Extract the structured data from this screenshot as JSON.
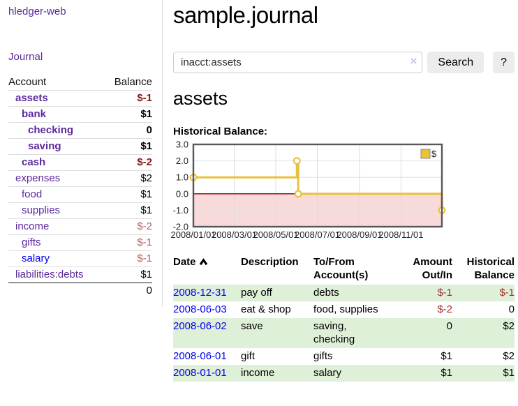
{
  "app": {
    "brand": "hledger-web",
    "nav_journal": "Journal"
  },
  "colors": {
    "link_purple": "#5b2a9b",
    "link_blue": "#0000ee",
    "negative_strong": "#8b1414",
    "negative_muted": "#b25f5f",
    "negative_table": "#9e2f2f",
    "row_stripe_green": "#dff0d8",
    "series_gold": "#e7c23f"
  },
  "sidebar": {
    "header": {
      "account": "Account",
      "balance": "Balance"
    },
    "rows": [
      {
        "label": "assets",
        "amount": "$-1",
        "depth": 1,
        "bold": true,
        "amount_class": "negs",
        "blue": false
      },
      {
        "label": "bank",
        "amount": "$1",
        "depth": 2,
        "bold": true,
        "amount_class": "",
        "blue": false
      },
      {
        "label": "checking",
        "amount": "0",
        "depth": 3,
        "bold": true,
        "amount_class": "",
        "blue": false
      },
      {
        "label": "saving",
        "amount": "$1",
        "depth": 3,
        "bold": true,
        "amount_class": "",
        "blue": false
      },
      {
        "label": "cash",
        "amount": "$-2",
        "depth": 2,
        "bold": true,
        "amount_class": "negs",
        "blue": false
      },
      {
        "label": "expenses",
        "amount": "$2",
        "depth": 1,
        "bold": false,
        "amount_class": "",
        "blue": false
      },
      {
        "label": "food",
        "amount": "$1",
        "depth": 2,
        "bold": false,
        "amount_class": "",
        "blue": false
      },
      {
        "label": "supplies",
        "amount": "$1",
        "depth": 2,
        "bold": false,
        "amount_class": "",
        "blue": false
      },
      {
        "label": "income",
        "amount": "$-2",
        "depth": 1,
        "bold": false,
        "amount_class": "negm",
        "blue": false
      },
      {
        "label": "gifts",
        "amount": "$-1",
        "depth": 2,
        "bold": false,
        "amount_class": "negm",
        "blue": false
      },
      {
        "label": "salary",
        "amount": "$-1",
        "depth": 2,
        "bold": false,
        "amount_class": "negm",
        "blue": true
      },
      {
        "label": "liabilities:debts",
        "amount": "$1",
        "depth": 1,
        "bold": false,
        "amount_class": "",
        "blue": false
      }
    ],
    "total": "0"
  },
  "main": {
    "title": "sample.journal",
    "search": {
      "value": "inacct:assets",
      "clear_icon": "×",
      "button": "Search",
      "help_button": "?"
    },
    "account_title": "assets",
    "chart_label": "Historical Balance:"
  },
  "register": {
    "headers": {
      "date": "Date",
      "description": "Description",
      "account": "To/From\nAccount(s)",
      "amount": "Amount\nOut/In",
      "balance": "Historical\nBalance"
    },
    "rows": [
      {
        "date": "2008-12-31",
        "description": "pay off",
        "accounts": "debts",
        "amount": "$-1",
        "amount_neg": true,
        "balance": "$-1",
        "balance_neg": true
      },
      {
        "date": "2008-06-03",
        "description": "eat & shop",
        "accounts": "food, supplies",
        "amount": "$-2",
        "amount_neg": true,
        "balance": "0",
        "balance_neg": false
      },
      {
        "date": "2008-06-02",
        "description": "save",
        "accounts": "saving,\nchecking",
        "amount": "0",
        "amount_neg": false,
        "balance": "$2",
        "balance_neg": false
      },
      {
        "date": "2008-06-01",
        "description": "gift",
        "accounts": "gifts",
        "amount": "$1",
        "amount_neg": false,
        "balance": "$2",
        "balance_neg": false
      },
      {
        "date": "2008-01-01",
        "description": "income",
        "accounts": "salary",
        "amount": "$1",
        "amount_neg": false,
        "balance": "$1",
        "balance_neg": false
      }
    ]
  },
  "chart_data": {
    "type": "line",
    "step": true,
    "title": "Historical Balance",
    "xlabel": "",
    "ylabel": "",
    "series": [
      {
        "name": "$",
        "color": "#e7c23f",
        "points": [
          [
            "2008-01-01",
            1
          ],
          [
            "2008-06-01",
            2
          ],
          [
            "2008-06-03",
            0
          ],
          [
            "2008-12-31",
            -1
          ]
        ]
      }
    ],
    "x_domain": [
      "2008-01-01",
      "2008-12-31"
    ],
    "x_ticks": [
      "2008/01/01",
      "2008/03/01",
      "2008/05/01",
      "2008/07/01",
      "2008/09/01",
      "2008/11/01"
    ],
    "y_ticks": [
      3.0,
      2.0,
      1.0,
      0.0,
      -1.0,
      -2.0
    ],
    "ylim": [
      -2,
      3
    ],
    "grid": true,
    "negative_region_color": "#f9dadb",
    "zero_line_color": "#8b0000",
    "legend": {
      "label": "$",
      "position": "top-right"
    }
  }
}
